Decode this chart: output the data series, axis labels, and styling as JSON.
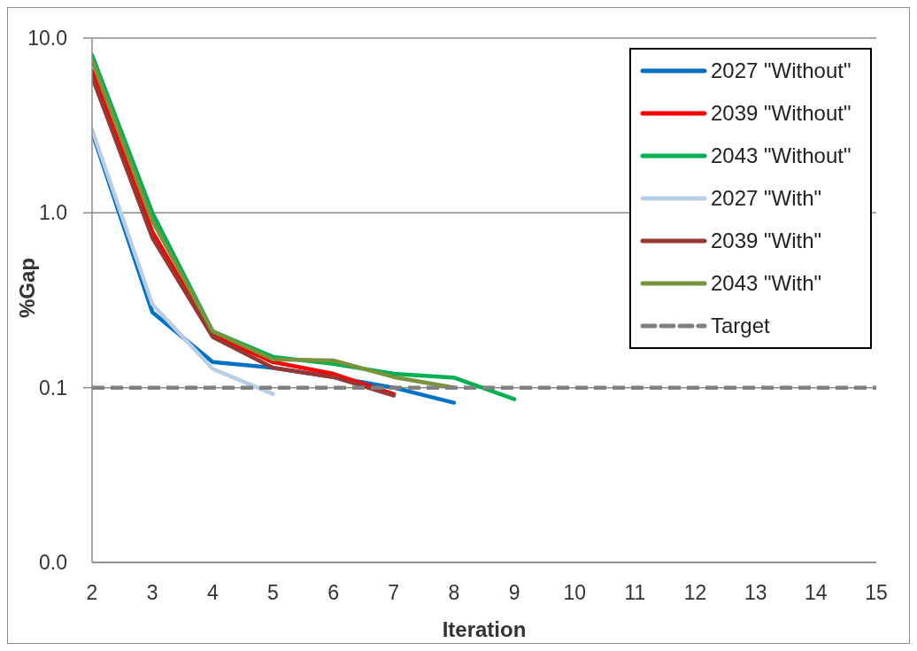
{
  "chart_data": {
    "type": "line",
    "xlabel": "Iteration",
    "ylabel": "%Gap",
    "x": [
      2,
      3,
      4,
      5,
      6,
      7,
      8,
      9
    ],
    "series": [
      {
        "name": "2027 \"Without\"",
        "color": "#0070c0",
        "values": [
          2.9,
          0.27,
          0.14,
          0.13,
          0.115,
          0.1,
          0.082,
          null
        ]
      },
      {
        "name": "2039 \"Without\"",
        "color": "#ff0000",
        "values": [
          6.5,
          0.78,
          0.2,
          0.14,
          0.12,
          0.092,
          null,
          null
        ]
      },
      {
        "name": "2043 \"Without\"",
        "color": "#00b050",
        "values": [
          8.0,
          1.0,
          0.21,
          0.15,
          0.137,
          0.12,
          0.114,
          0.086
        ]
      },
      {
        "name": "2027 \"With\"",
        "color": "#b9cde5",
        "values": [
          3.0,
          0.3,
          0.128,
          0.092,
          null,
          null,
          null,
          null
        ]
      },
      {
        "name": "2039 \"With\"",
        "color": "#953735",
        "values": [
          6.0,
          0.72,
          0.195,
          0.13,
          0.115,
          0.09,
          null,
          null
        ]
      },
      {
        "name": "2043 \"With\"",
        "color": "#77933c",
        "values": [
          7.5,
          0.9,
          0.21,
          0.145,
          0.143,
          0.115,
          0.1,
          null
        ]
      }
    ],
    "xlim": [
      2,
      15
    ],
    "xticks": [
      2,
      3,
      4,
      5,
      6,
      7,
      8,
      9,
      10,
      11,
      12,
      13,
      14,
      15
    ],
    "ylim": [
      0.01,
      10
    ],
    "yticks": [
      {
        "value": 0.01,
        "label": "0.0"
      },
      0.1,
      {
        "value": 1,
        "label": "1.0"
      },
      {
        "value": 10,
        "label": "10.0"
      }
    ],
    "log": true,
    "grid": "y",
    "legend": "top right",
    "marker": "none",
    "ref_lines": [
      {
        "axis": "y",
        "value": 0.1,
        "label": "Target",
        "color": "#808080",
        "line_style": "dashed"
      }
    ]
  }
}
